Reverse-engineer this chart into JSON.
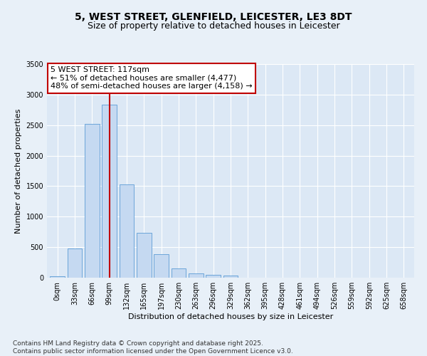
{
  "title1": "5, WEST STREET, GLENFIELD, LEICESTER, LE3 8DT",
  "title2": "Size of property relative to detached houses in Leicester",
  "xlabel": "Distribution of detached houses by size in Leicester",
  "ylabel": "Number of detached properties",
  "bar_labels": [
    "0sqm",
    "33sqm",
    "66sqm",
    "99sqm",
    "132sqm",
    "165sqm",
    "197sqm",
    "230sqm",
    "263sqm",
    "296sqm",
    "329sqm",
    "362sqm",
    "395sqm",
    "428sqm",
    "461sqm",
    "494sqm",
    "526sqm",
    "559sqm",
    "592sqm",
    "625sqm",
    "658sqm"
  ],
  "bar_values": [
    20,
    480,
    2520,
    2840,
    1530,
    730,
    390,
    155,
    75,
    50,
    40,
    0,
    0,
    0,
    0,
    0,
    0,
    0,
    0,
    0,
    0
  ],
  "bar_color": "#c5d9f1",
  "bar_edge_color": "#5b9bd5",
  "vline_x": 3.0,
  "vline_color": "#c00000",
  "annotation_line1": "5 WEST STREET: 117sqm",
  "annotation_line2": "← 51% of detached houses are smaller (4,477)",
  "annotation_line3": "48% of semi-detached houses are larger (4,158) →",
  "annotation_box_facecolor": "white",
  "annotation_box_edgecolor": "#c00000",
  "ylim": [
    0,
    3500
  ],
  "yticks": [
    0,
    500,
    1000,
    1500,
    2000,
    2500,
    3000,
    3500
  ],
  "background_color": "#e8f0f8",
  "plot_bg_color": "#dce8f5",
  "grid_color": "white",
  "footer_text": "Contains HM Land Registry data © Crown copyright and database right 2025.\nContains public sector information licensed under the Open Government Licence v3.0.",
  "title_fontsize": 10,
  "subtitle_fontsize": 9,
  "tick_fontsize": 7,
  "ylabel_fontsize": 8,
  "xlabel_fontsize": 8,
  "annotation_fontsize": 8,
  "footer_fontsize": 6.5
}
